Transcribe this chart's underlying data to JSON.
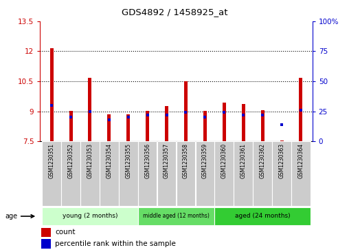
{
  "title": "GDS4892 / 1458925_at",
  "samples": [
    "GSM1230351",
    "GSM1230352",
    "GSM1230353",
    "GSM1230354",
    "GSM1230355",
    "GSM1230356",
    "GSM1230357",
    "GSM1230358",
    "GSM1230359",
    "GSM1230360",
    "GSM1230361",
    "GSM1230362",
    "GSM1230363",
    "GSM1230364"
  ],
  "count_values": [
    12.15,
    9.03,
    10.67,
    8.85,
    8.83,
    9.03,
    9.27,
    10.5,
    9.03,
    9.43,
    9.35,
    9.07,
    7.55,
    10.67
  ],
  "percentile_values": [
    30,
    20,
    25,
    18,
    20,
    22,
    22,
    24,
    20,
    24,
    22,
    22,
    14,
    26
  ],
  "ylim_left": [
    7.5,
    13.5
  ],
  "ylim_right": [
    0,
    100
  ],
  "yticks_left": [
    7.5,
    9.0,
    10.5,
    12.0,
    13.5
  ],
  "yticks_right": [
    0,
    25,
    50,
    75,
    100
  ],
  "ytick_labels_left": [
    "7.5",
    "9",
    "10.5",
    "12",
    "13.5"
  ],
  "ytick_labels_right": [
    "0",
    "25",
    "50",
    "75",
    "100%"
  ],
  "bar_color": "#cc0000",
  "dot_color": "#0000cc",
  "base_value": 7.5,
  "groups": [
    {
      "label": "young (2 months)",
      "start": 0,
      "end": 5,
      "color": "#ccffcc"
    },
    {
      "label": "middle aged (12 months)",
      "start": 5,
      "end": 9,
      "color": "#66dd66"
    },
    {
      "label": "aged (24 months)",
      "start": 9,
      "end": 14,
      "color": "#33cc33"
    }
  ],
  "age_label": "age",
  "legend_count_label": "count",
  "legend_percentile_label": "percentile rank within the sample",
  "left_axis_color": "#cc0000",
  "right_axis_color": "#0000cc",
  "tick_label_bg": "#cccccc",
  "bar_width": 0.18
}
